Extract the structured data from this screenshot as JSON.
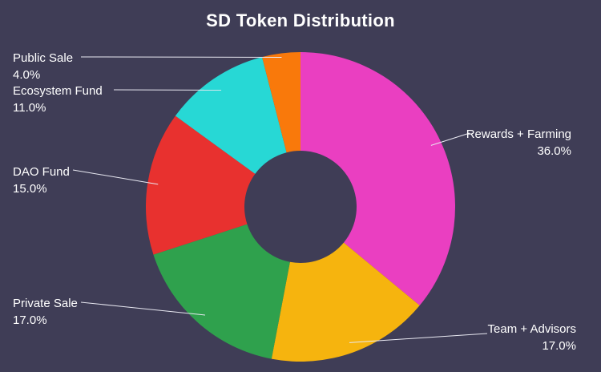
{
  "chart_data": {
    "type": "pie",
    "title": "SD Token Distribution",
    "donut": true,
    "hole_ratio": 0.36,
    "background": "#3f3d56",
    "start_angle_deg": 0,
    "direction": "clockwise",
    "legend_position": "labels-with-leader-lines",
    "segments": [
      {
        "label": "Rewards + Farming",
        "value": 36.0,
        "pct_label": "36.0%",
        "color": "#ea3fc1"
      },
      {
        "label": "Team + Advisors",
        "value": 17.0,
        "pct_label": "17.0%",
        "color": "#f6b40e"
      },
      {
        "label": "Private Sale",
        "value": 17.0,
        "pct_label": "17.0%",
        "color": "#2fa14d"
      },
      {
        "label": "DAO Fund",
        "value": 15.0,
        "pct_label": "15.0%",
        "color": "#e8312f"
      },
      {
        "label": "Ecosystem Fund",
        "value": 11.0,
        "pct_label": "11.0%",
        "color": "#27d8d5"
      },
      {
        "label": "Public Sale",
        "value": 4.0,
        "pct_label": "4.0%",
        "color": "#f9790b"
      }
    ]
  }
}
